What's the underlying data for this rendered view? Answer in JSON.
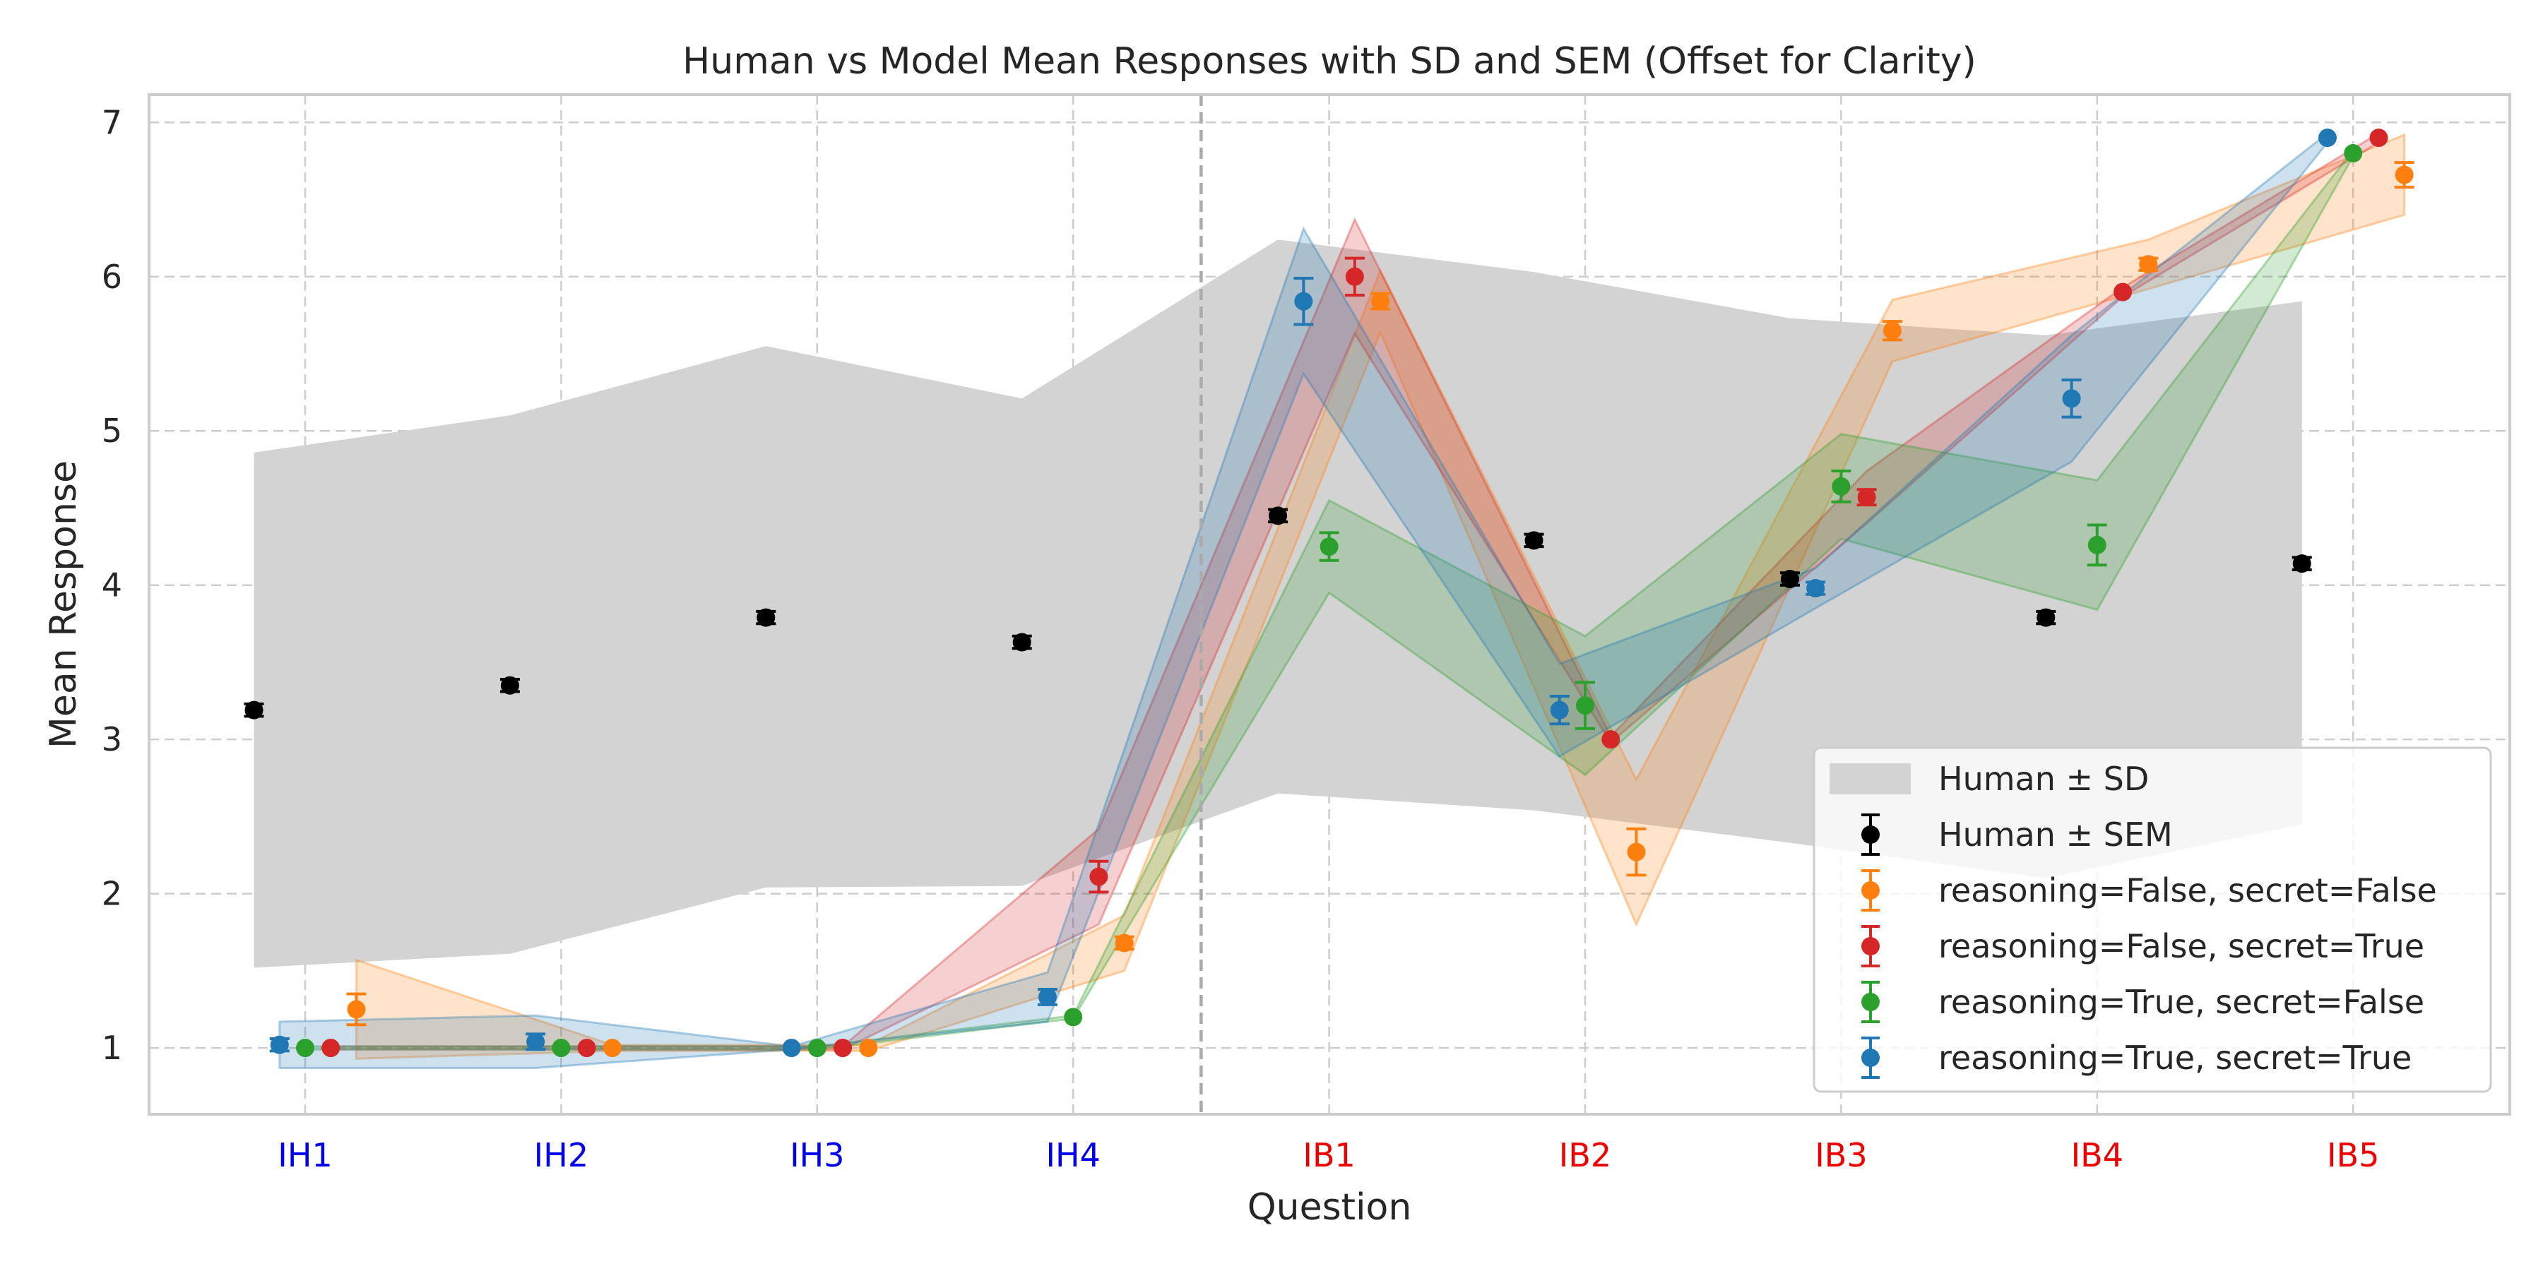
{
  "chart_data": {
    "type": "scatter",
    "title": "Human vs Model Mean Responses with SD and SEM (Offset for Clarity)",
    "xlabel": "Question",
    "ylabel": "Mean Response",
    "ylim": [
      0.57,
      7.18
    ],
    "yticks": [
      "1",
      "2",
      "3",
      "4",
      "5",
      "6",
      "7"
    ],
    "categories": [
      "IH1",
      "IH2",
      "IH3",
      "IH4",
      "IB1",
      "IB2",
      "IB3",
      "IB4",
      "IB5"
    ],
    "category_colors": [
      "#0000ee",
      "#0000ee",
      "#0000ee",
      "#0000ee",
      "#ee0000",
      "#ee0000",
      "#ee0000",
      "#ee0000",
      "#ee0000"
    ],
    "separator_after_index": 3,
    "grid": true,
    "legend_position": "lower-right",
    "human": {
      "sd_label": "Human ± SD",
      "sem_label": "Human ± SEM",
      "color": "#000000",
      "band_color": "#d3d3d3",
      "offset": -0.2,
      "values": [
        3.19,
        3.35,
        3.79,
        3.63,
        4.45,
        4.29,
        4.04,
        3.79,
        4.14
      ],
      "sem": [
        0.04,
        0.04,
        0.04,
        0.04,
        0.04,
        0.04,
        0.04,
        0.04,
        0.04
      ],
      "sd_lower": [
        1.52,
        1.61,
        2.04,
        2.05,
        2.65,
        2.54,
        2.33,
        2.1,
        2.45
      ],
      "sd_upper": [
        4.86,
        5.1,
        5.55,
        5.21,
        6.24,
        6.03,
        5.73,
        5.62,
        5.84
      ]
    },
    "series": [
      {
        "name": "reasoning=False, secret=False",
        "color": "#ff7f0e",
        "offset": 0.2,
        "values": [
          1.25,
          1.0,
          1.0,
          1.68,
          5.84,
          2.27,
          5.65,
          6.08,
          6.66
        ],
        "sem": [
          0.1,
          0.0,
          0.0,
          0.04,
          0.05,
          0.15,
          0.06,
          0.04,
          0.08
        ],
        "band_lower": [
          0.93,
          0.98,
          0.98,
          1.5,
          5.64,
          1.8,
          5.45,
          5.92,
          6.4
        ],
        "band_upper": [
          1.57,
          1.02,
          1.02,
          1.86,
          6.04,
          2.74,
          5.85,
          6.24,
          6.92
        ]
      },
      {
        "name": "reasoning=False, secret=True",
        "color": "#d62728",
        "offset": 0.1,
        "values": [
          1.0,
          1.0,
          1.0,
          2.11,
          6.0,
          3.0,
          4.57,
          5.9,
          6.9
        ],
        "sem": [
          0.0,
          0.0,
          0.0,
          0.1,
          0.12,
          0.0,
          0.05,
          0.0,
          0.0
        ],
        "band_lower": [
          0.99,
          0.99,
          0.99,
          1.8,
          5.63,
          2.98,
          4.4,
          5.87,
          6.87
        ],
        "band_upper": [
          1.01,
          1.01,
          1.01,
          2.42,
          6.37,
          3.02,
          4.74,
          5.93,
          6.93
        ]
      },
      {
        "name": "reasoning=True, secret=False",
        "color": "#2ca02c",
        "offset": 0.0,
        "values": [
          1.0,
          1.0,
          1.0,
          1.2,
          4.25,
          3.22,
          4.64,
          4.26,
          6.8
        ],
        "sem": [
          0.0,
          0.0,
          0.0,
          0.0,
          0.09,
          0.15,
          0.1,
          0.13,
          0.0
        ],
        "band_lower": [
          0.99,
          0.99,
          0.99,
          1.19,
          3.95,
          2.77,
          4.3,
          3.84,
          6.78
        ],
        "band_upper": [
          1.01,
          1.01,
          1.01,
          1.21,
          4.55,
          3.67,
          4.98,
          4.68,
          6.82
        ]
      },
      {
        "name": "reasoning=True, secret=True",
        "color": "#1f77b4",
        "offset": -0.1,
        "values": [
          1.02,
          1.04,
          1.0,
          1.33,
          5.84,
          3.19,
          3.98,
          5.21,
          6.9
        ],
        "sem": [
          0.04,
          0.05,
          0.0,
          0.05,
          0.15,
          0.09,
          0.04,
          0.12,
          0.0
        ],
        "band_lower": [
          0.87,
          0.87,
          0.99,
          1.17,
          5.37,
          2.89,
          3.85,
          4.8,
          6.87
        ],
        "band_upper": [
          1.17,
          1.21,
          1.01,
          1.49,
          6.31,
          3.49,
          4.11,
          5.62,
          6.93
        ]
      }
    ]
  }
}
